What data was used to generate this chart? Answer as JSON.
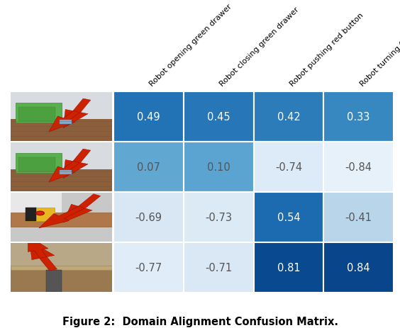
{
  "values": [
    [
      0.49,
      0.45,
      0.42,
      0.33
    ],
    [
      0.07,
      0.1,
      -0.74,
      -0.84
    ],
    [
      -0.69,
      -0.73,
      0.54,
      -0.41
    ],
    [
      -0.77,
      -0.71,
      0.81,
      0.84
    ]
  ],
  "col_labels": [
    "Robot opening green drawer",
    "Robot closing green drawer",
    "Robot pushing red button",
    "Robot turning faucet"
  ],
  "vmin": -1.0,
  "vmax": 1.0,
  "colormap": "Blues",
  "title": "Figure 2:  Domain Alignment Confusion Matrix.",
  "title_fontsize": 10.5,
  "title_fontweight": "bold",
  "cell_fontsize": 10.5,
  "col_label_fontsize": 8,
  "col_label_rotation": 45,
  "background_color": "#ffffff",
  "positive_text_color": "#ffffff",
  "negative_text_color": "#555555",
  "negative_threshold": 0.15,
  "row_image_colors": [
    [
      "#e8ece0",
      "#c0c8b8",
      "#a0a898"
    ],
    [
      "#e8ece0",
      "#c0c8b8",
      "#a0a898"
    ],
    [
      "#d8dcd4",
      "#b8c0b0",
      "#989890"
    ],
    [
      "#d8dcd4",
      "#b8c0b0",
      "#989890"
    ]
  ],
  "grid_color": "#ffffff",
  "border_color": "#cccccc"
}
